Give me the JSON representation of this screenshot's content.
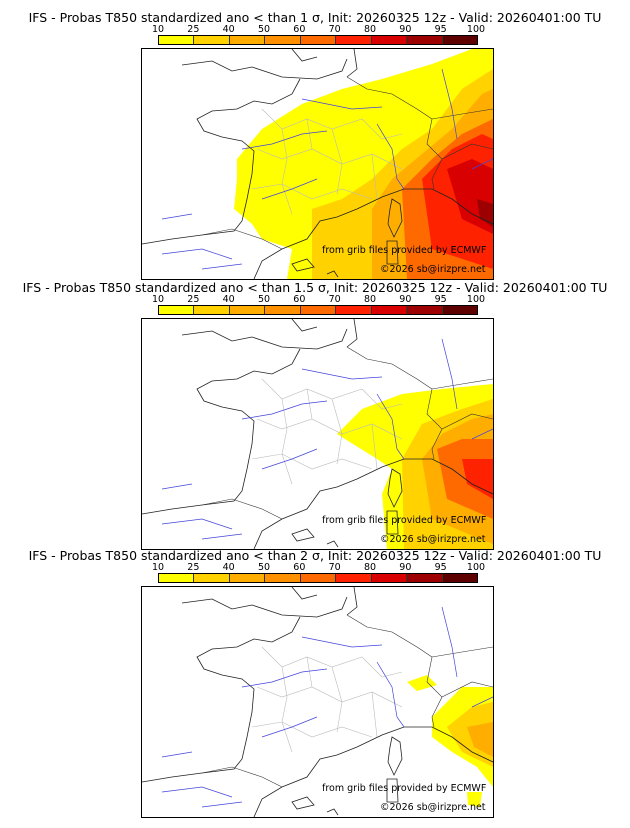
{
  "panels": [
    {
      "title": "IFS - Probas T850  standardized ano < than 1 σ, Init: 20260325 12z - Valid: 20260401:00 TU"
    },
    {
      "title": "IFS - Probas T850  standardized ano < than 1.5 σ, Init: 20260325 12z - Valid: 20260401:00 TU"
    },
    {
      "title": "IFS - Probas T850  standardized ano < than 2 σ, Init: 20260325 12z - Valid: 20260401:00 TU"
    }
  ],
  "colorbar": {
    "ticks": [
      "10",
      "25",
      "40",
      "50",
      "60",
      "70",
      "80",
      "90",
      "95",
      "100"
    ],
    "colors": [
      "#ffff00",
      "#ffd200",
      "#ffae00",
      "#ff9000",
      "#ff6a00",
      "#ff2200",
      "#d80000",
      "#9c0000",
      "#5e0000"
    ]
  },
  "credits": {
    "source": "from grib files provided by ECMWF",
    "copyright": "©2026 sb@irizpre.net"
  }
}
